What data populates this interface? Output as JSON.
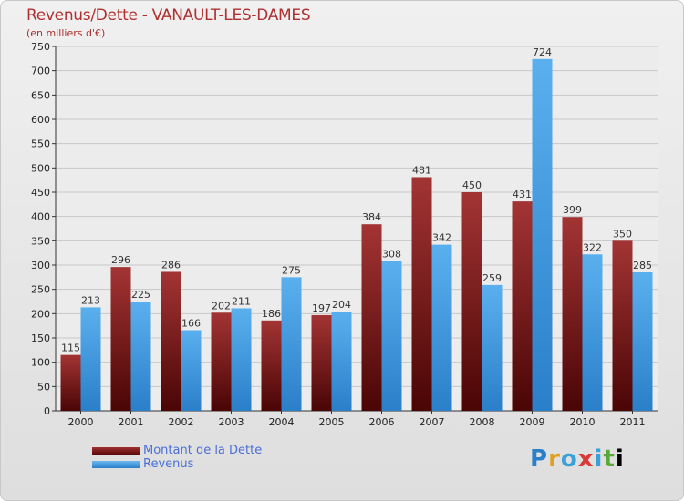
{
  "chart_data": {
    "type": "bar",
    "title": "Revenus/Dette - VANAULT-LES-DAMES",
    "subtitle": "(en milliers d'€)",
    "categories": [
      "2000",
      "2001",
      "2002",
      "2003",
      "2004",
      "2005",
      "2006",
      "2007",
      "2008",
      "2009",
      "2010",
      "2011"
    ],
    "series": [
      {
        "name": "Montant de la Dette",
        "color": "#7a1f1f",
        "values": [
          115,
          296,
          286,
          202,
          186,
          197,
          384,
          481,
          450,
          431,
          399,
          350
        ]
      },
      {
        "name": "Revenus",
        "color": "#4aa3e8",
        "values": [
          213,
          225,
          166,
          211,
          275,
          204,
          308,
          342,
          259,
          724,
          322,
          285
        ]
      }
    ],
    "ylim": [
      0,
      750
    ],
    "yticks": [
      0,
      50,
      100,
      150,
      200,
      250,
      300,
      350,
      400,
      450,
      500,
      550,
      600,
      650,
      700,
      750
    ],
    "grid": true,
    "legend": "bottom-left"
  },
  "logo": {
    "letters": [
      "P",
      "r",
      "o",
      "x",
      "i",
      "t",
      "i"
    ]
  }
}
